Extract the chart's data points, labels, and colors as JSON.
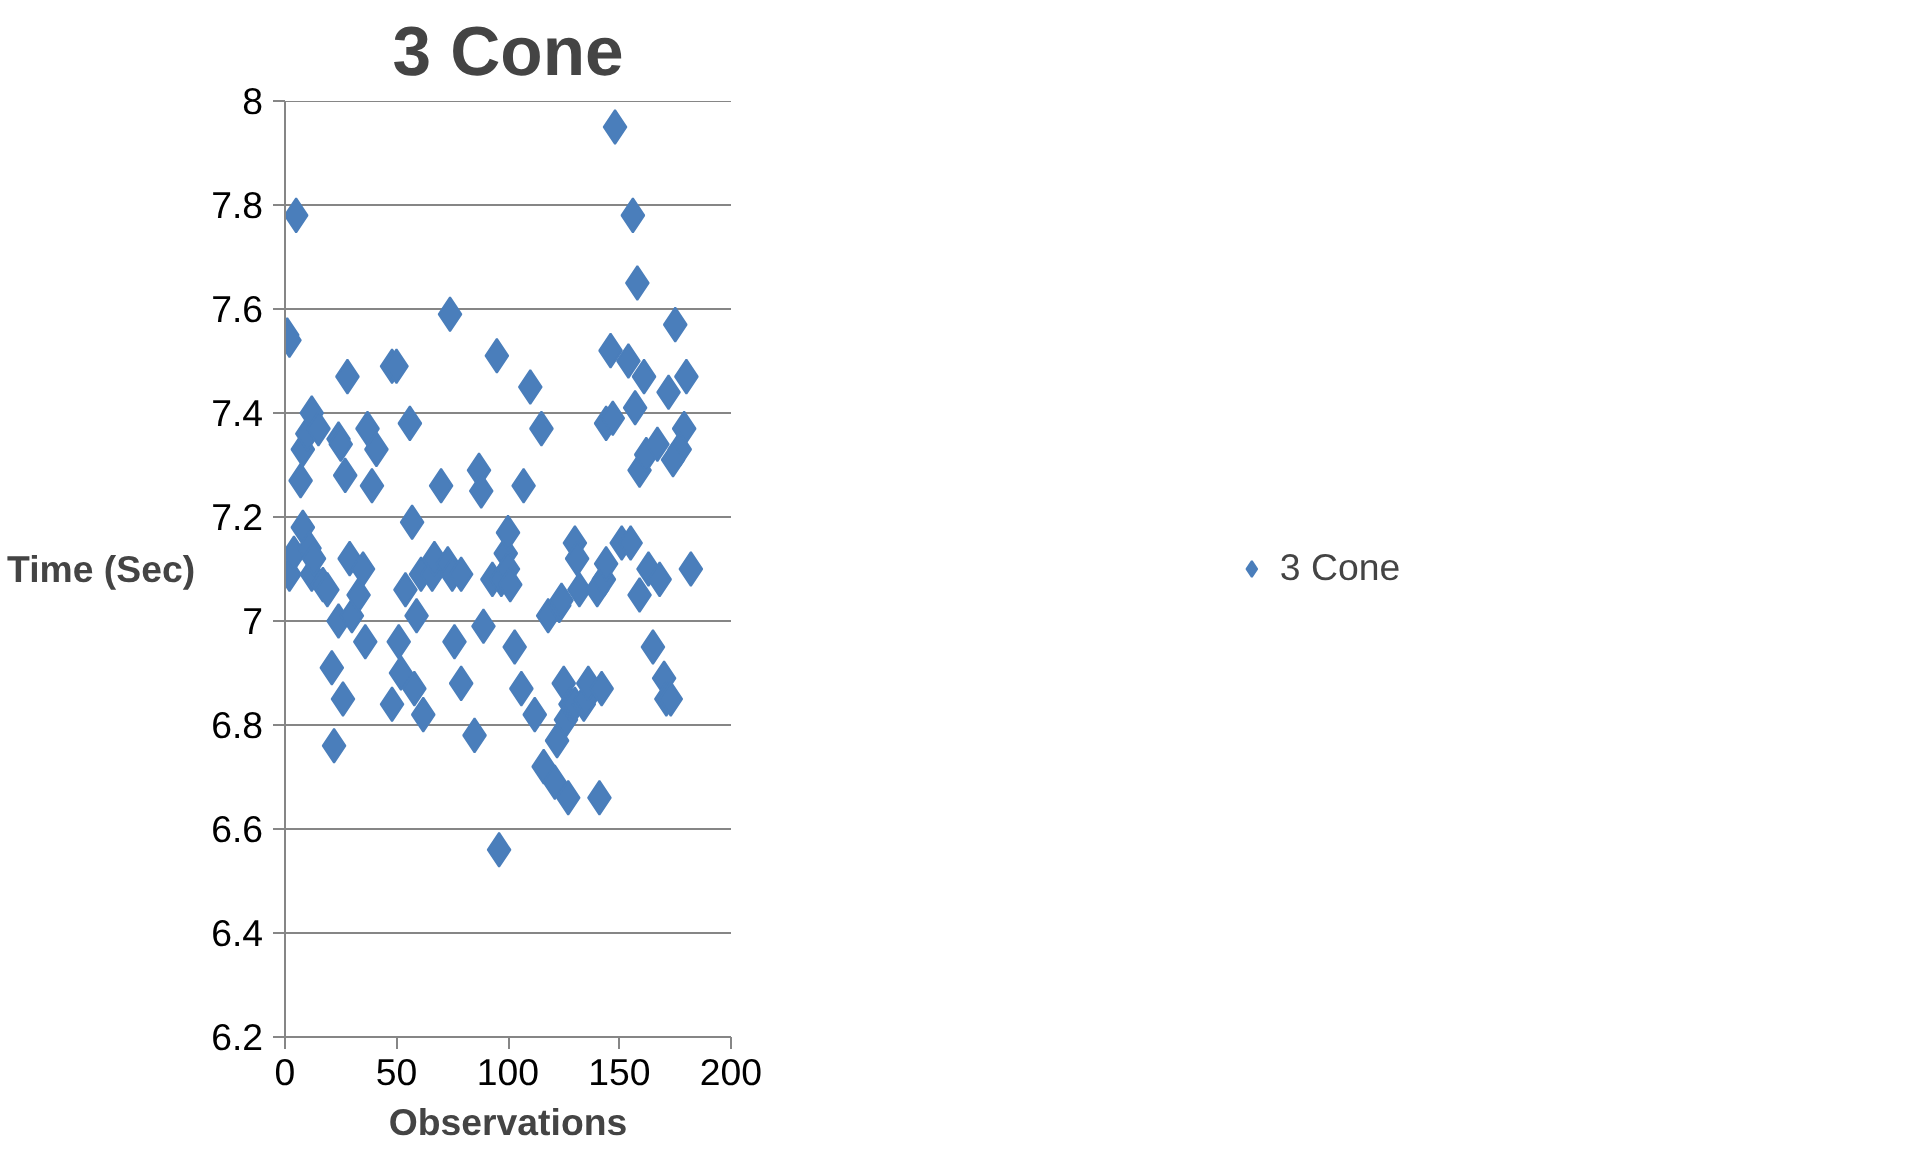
{
  "chart_data": {
    "type": "scatter",
    "title": "3 Cone",
    "xlabel": "Observations",
    "ylabel": "Time (Sec)",
    "xlim": [
      0,
      200
    ],
    "xticks": [
      0,
      50,
      100,
      150,
      200
    ],
    "ylim": [
      6.2,
      8
    ],
    "yticks": [
      6.2,
      6.4,
      6.6,
      6.8,
      7,
      7.2,
      7.4,
      7.6,
      7.8,
      8
    ],
    "grid": "y",
    "legend": "right",
    "marker": "diamond",
    "series": [
      {
        "name": "3 Cone",
        "color": "#4a7ebb",
        "x": [
          1,
          2,
          5,
          2,
          4,
          7,
          8,
          8,
          10,
          12,
          11,
          12,
          13,
          15,
          17,
          19,
          21,
          22,
          24,
          25,
          27,
          26,
          28,
          24,
          29,
          30,
          33,
          35,
          36,
          37,
          39,
          41,
          48,
          48,
          50,
          51,
          52,
          54,
          56,
          57,
          58,
          59,
          61,
          62,
          66,
          67,
          70,
          73,
          74,
          75,
          76,
          79,
          79,
          85,
          87,
          88,
          89,
          93,
          95,
          96,
          97,
          99,
          100,
          100,
          101,
          103,
          106,
          107,
          110,
          112,
          115,
          116,
          118,
          121,
          122,
          123,
          124,
          125,
          126,
          127,
          128,
          130,
          130,
          131,
          132,
          134,
          135,
          136,
          140,
          141,
          142,
          143,
          144,
          148,
          156,
          158,
          146,
          154,
          144,
          147,
          161,
          157,
          159,
          162,
          167,
          175,
          172,
          180,
          179,
          177,
          174,
          151,
          155,
          163,
          159,
          168,
          182,
          165,
          170,
          171,
          173
        ],
        "values": [
          7.55,
          7.54,
          7.78,
          7.09,
          7.13,
          7.27,
          7.33,
          7.18,
          7.36,
          7.4,
          7.14,
          7.09,
          7.12,
          7.37,
          7.07,
          7.06,
          6.91,
          6.76,
          7.35,
          7.34,
          7.28,
          6.85,
          7.47,
          7.0,
          7.12,
          7.01,
          7.05,
          7.1,
          6.96,
          7.37,
          7.26,
          7.33,
          6.84,
          7.49,
          7.49,
          6.96,
          6.9,
          7.06,
          7.38,
          7.19,
          6.87,
          7.01,
          7.09,
          6.82,
          7.09,
          7.12,
          7.26,
          7.11,
          7.59,
          7.09,
          6.96,
          6.88,
          7.09,
          6.78,
          7.29,
          7.25,
          6.99,
          7.08,
          7.51,
          6.56,
          7.08,
          7.13,
          7.17,
          7.1,
          7.07,
          6.95,
          6.87,
          7.26,
          7.45,
          6.82,
          7.37,
          6.72,
          7.01,
          6.69,
          6.77,
          7.03,
          7.04,
          6.88,
          6.81,
          6.66,
          6.84,
          6.84,
          7.15,
          7.12,
          7.06,
          6.84,
          6.85,
          6.88,
          7.06,
          6.66,
          6.87,
          7.08,
          7.11,
          7.95,
          7.78,
          7.65,
          7.52,
          7.5,
          7.38,
          7.39,
          7.47,
          7.41,
          7.29,
          7.32,
          7.34,
          7.57,
          7.44,
          7.47,
          7.37,
          7.33,
          7.31,
          7.15,
          7.15,
          7.1,
          7.05,
          7.08,
          7.1,
          6.95,
          6.89,
          6.85,
          6.85
        ]
      }
    ]
  }
}
